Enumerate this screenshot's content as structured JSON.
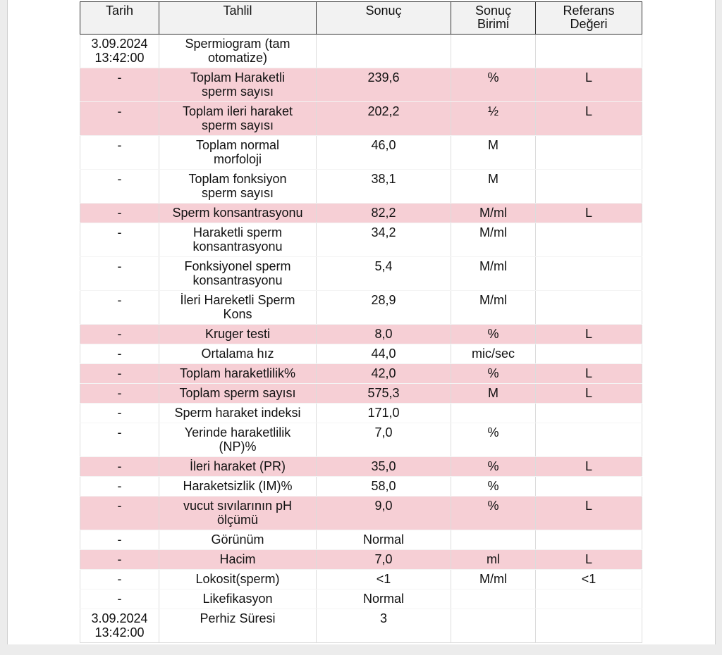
{
  "table": {
    "header": [
      "Tarih",
      "Tahlil",
      "Sonuç",
      "Sonuç\nBirimi",
      "Referans\nDeğeri"
    ],
    "rows": [
      {
        "cells": [
          "3.09.2024\n13:42:00",
          "Spermiogram (tam\notomatize)",
          null,
          null,
          null
        ],
        "highlight": false
      },
      {
        "cells": [
          "-",
          "Toplam Haraketli\nsperm sayısı",
          "239,6",
          "%",
          "L"
        ],
        "highlight": true
      },
      {
        "cells": [
          "-",
          "Toplam ileri haraket\nsperm sayısı",
          "202,2",
          "½",
          "L"
        ],
        "highlight": true
      },
      {
        "cells": [
          "-",
          "Toplam normal\nmorfoloji",
          "46,0",
          "M",
          null
        ],
        "highlight": false
      },
      {
        "cells": [
          "-",
          "Toplam fonksiyon\nsperm sayısı",
          "38,1",
          "M",
          null
        ],
        "highlight": false
      },
      {
        "cells": [
          "-",
          "Sperm konsantrasyonu",
          "82,2",
          "M/ml",
          "L"
        ],
        "highlight": true
      },
      {
        "cells": [
          "-",
          "Haraketli sperm\nkonsantrasyonu",
          "34,2",
          "M/ml",
          null
        ],
        "highlight": false
      },
      {
        "cells": [
          "-",
          "Fonksiyonel sperm\nkonsantrasyonu",
          "5,4",
          "M/ml",
          null
        ],
        "highlight": false
      },
      {
        "cells": [
          "-",
          "İleri Hareketli Sperm\nKons",
          "28,9",
          "M/ml",
          null
        ],
        "highlight": false
      },
      {
        "cells": [
          "-",
          "Kruger testi",
          "8,0",
          "%",
          "L"
        ],
        "highlight": true
      },
      {
        "cells": [
          "-",
          "Ortalama hız",
          "44,0",
          "mic/sec",
          null
        ],
        "highlight": false
      },
      {
        "cells": [
          "-",
          "Toplam haraketlilik%",
          "42,0",
          "%",
          "L"
        ],
        "highlight": true
      },
      {
        "cells": [
          "-",
          "Toplam sperm sayısı",
          "575,3",
          "M",
          "L"
        ],
        "highlight": true
      },
      {
        "cells": [
          "-",
          "Sperm haraket indeksi",
          "171,0",
          null,
          null
        ],
        "highlight": false
      },
      {
        "cells": [
          "-",
          "Yerinde haraketlilik\n(NP)%",
          "7,0",
          "%",
          null
        ],
        "highlight": false
      },
      {
        "cells": [
          "-",
          "İleri haraket (PR)",
          "35,0",
          "%",
          "L"
        ],
        "highlight": true
      },
      {
        "cells": [
          "-",
          "Haraketsizlik (IM)%",
          "58,0",
          "%",
          null
        ],
        "highlight": false
      },
      {
        "cells": [
          "-",
          "vucut sıvılarının pH\nölçümü",
          "9,0",
          "%",
          "L"
        ],
        "highlight": true
      },
      {
        "cells": [
          "-",
          "Görünüm",
          "Normal",
          null,
          null
        ],
        "highlight": false
      },
      {
        "cells": [
          "-",
          "Hacim",
          "7,0",
          "ml",
          "L"
        ],
        "highlight": true
      },
      {
        "cells": [
          "-",
          "Lokosit(sperm)",
          "<1",
          "M/ml",
          "<1"
        ],
        "highlight": false
      },
      {
        "cells": [
          "-",
          "Likefikasyon",
          "Normal",
          null,
          null
        ],
        "highlight": false
      },
      {
        "cells": [
          "3.09.2024\n13:42:00",
          "Perhiz Süresi",
          "3",
          null,
          null
        ],
        "highlight": false
      }
    ]
  }
}
